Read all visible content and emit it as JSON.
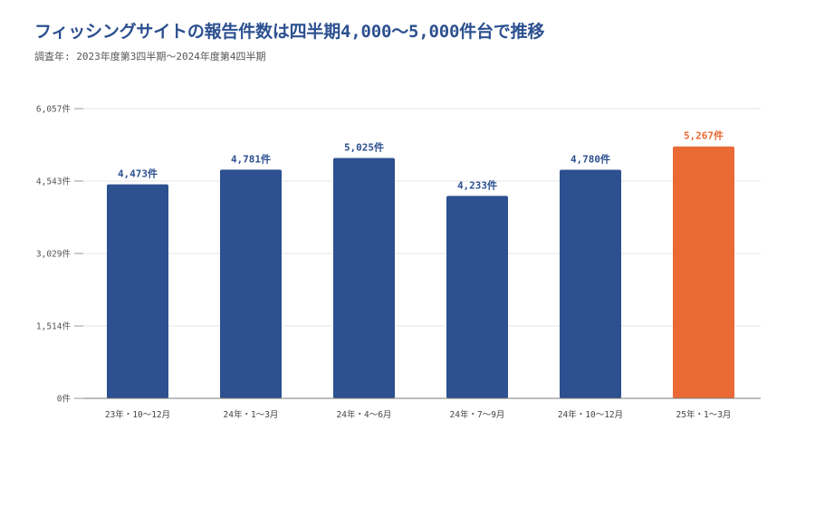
{
  "chart_data": {
    "type": "bar",
    "title": "フィッシングサイトの報告件数は四半期4,000〜5,000件台で推移",
    "subtitle": "調査年: 2023年度第3四半期〜2024年度第4四半期",
    "xlabel": "",
    "ylabel": "",
    "unit": "件",
    "categories": [
      "23年・10〜12月",
      "24年・1〜3月",
      "24年・4〜6月",
      "24年・7〜9月",
      "24年・10〜12月",
      "25年・1〜3月"
    ],
    "values": [
      4473,
      4781,
      5025,
      4233,
      4780,
      5267
    ],
    "data_labels": [
      "4,473件",
      "4,781件",
      "5,025件",
      "4,233件",
      "4,780件",
      "5,267件"
    ],
    "ylim": [
      0,
      6057
    ],
    "yticks": [
      0,
      1514,
      3029,
      4543,
      6057
    ],
    "ytick_labels": [
      "0件",
      "1,514件",
      "3,029件",
      "4,543件",
      "6,057件"
    ],
    "grid": true,
    "legend": "none",
    "colors": {
      "bar": "#2c5090",
      "highlight": "#e96a35",
      "title": "#2c5090"
    },
    "highlight_index": 5
  }
}
